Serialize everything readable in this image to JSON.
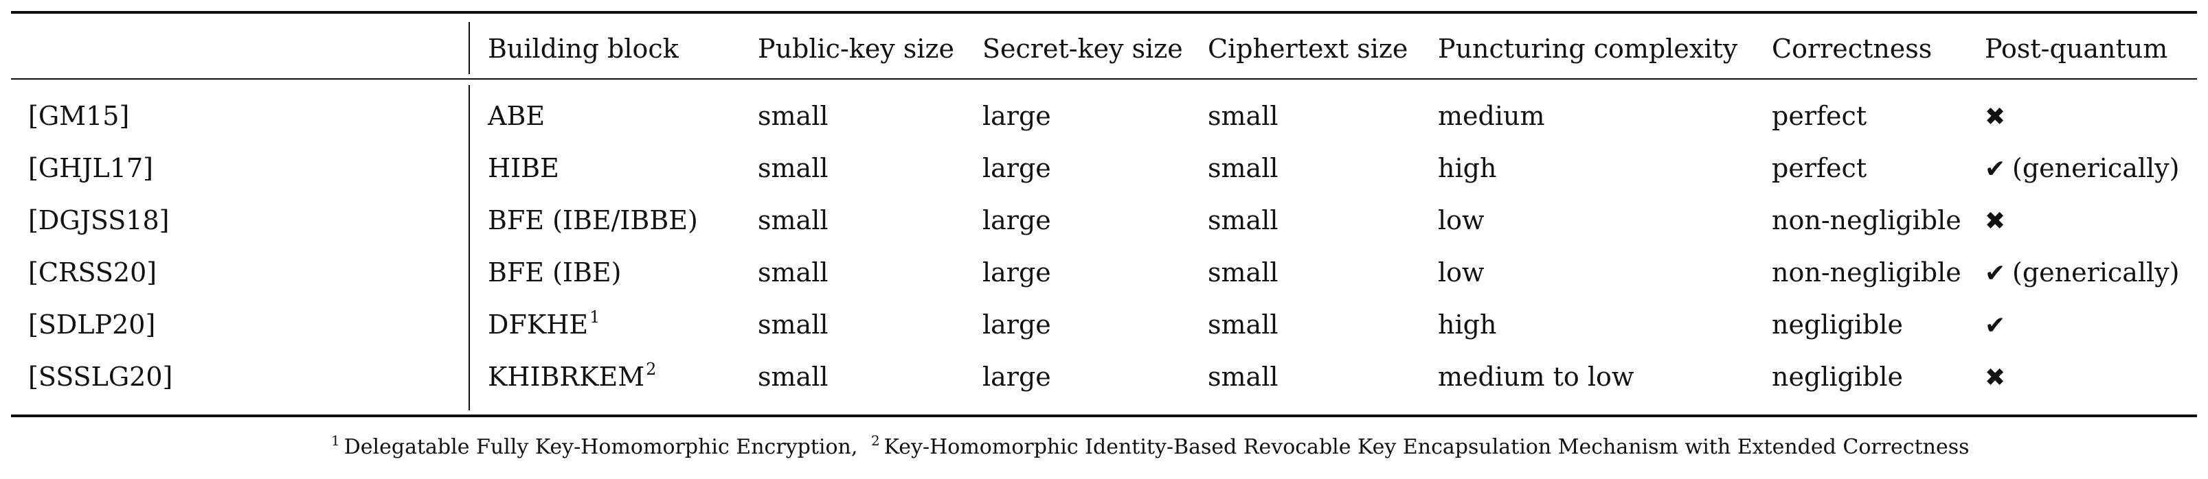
{
  "table": {
    "headers": [
      "",
      "Building block",
      "Public-key size",
      "Secret-key size",
      "Ciphertext size",
      "Puncturing complexity",
      "Correctness",
      "Post-quantum"
    ],
    "rows": [
      {
        "ref": "[GM15]",
        "block": "ABE",
        "block_sup": "",
        "pk": "small",
        "sk": "large",
        "ct": "small",
        "punct": "medium",
        "correct": "perfect",
        "pq_icon": "✖",
        "pq_icon_name": "cross-icon",
        "pq_note": ""
      },
      {
        "ref": "[GHJL17]",
        "block": "HIBE",
        "block_sup": "",
        "pk": "small",
        "sk": "large",
        "ct": "small",
        "punct": "high",
        "correct": "perfect",
        "pq_icon": "✔",
        "pq_icon_name": "check-icon",
        "pq_note": "(generically)"
      },
      {
        "ref": "[DGJSS18]",
        "block": "BFE (IBE/IBBE)",
        "block_sup": "",
        "pk": "small",
        "sk": "large",
        "ct": "small",
        "punct": "low",
        "correct": "non-negligible",
        "pq_icon": "✖",
        "pq_icon_name": "cross-icon",
        "pq_note": ""
      },
      {
        "ref": "[CRSS20]",
        "block": "BFE (IBE)",
        "block_sup": "",
        "pk": "small",
        "sk": "large",
        "ct": "small",
        "punct": "low",
        "correct": "non-negligible",
        "pq_icon": "✔",
        "pq_icon_name": "check-icon",
        "pq_note": "(generically)"
      },
      {
        "ref": "[SDLP20]",
        "block": "DFKHE",
        "block_sup": "1",
        "pk": "small",
        "sk": "large",
        "ct": "small",
        "punct": "high",
        "correct": "negligible",
        "pq_icon": "✔",
        "pq_icon_name": "check-icon",
        "pq_note": ""
      },
      {
        "ref": "[SSSLG20]",
        "block": "KHIBRKEM",
        "block_sup": "2",
        "pk": "small",
        "sk": "large",
        "ct": "small",
        "punct": "medium to low",
        "correct": "negligible",
        "pq_icon": "✖",
        "pq_icon_name": "cross-icon",
        "pq_note": ""
      }
    ]
  },
  "footnote": {
    "mark1": "1",
    "text1": "Delegatable Fully Key-Homomorphic Encryption,",
    "mark2": "2",
    "text2": "Key-Homomorphic Identity-Based Revocable Key Encapsulation Mechanism with Extended Correctness"
  }
}
